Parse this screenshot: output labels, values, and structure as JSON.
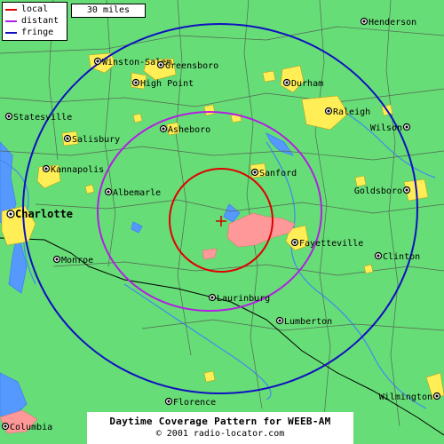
{
  "legend": {
    "items": [
      {
        "label": "local",
        "color": "#e00000"
      },
      {
        "label": "distant",
        "color": "#b020e0"
      },
      {
        "label": "fringe",
        "color": "#1010c0"
      }
    ]
  },
  "scale": {
    "label": "30 miles"
  },
  "title": "Daytime Coverage Pattern for WEEB-AM",
  "copyright": "© 2001 radio-locator.com",
  "cities": [
    {
      "name": "Henderson",
      "big": false
    },
    {
      "name": "Winston-Salem",
      "big": false
    },
    {
      "name": "Greensboro",
      "big": false
    },
    {
      "name": "High Point",
      "big": false
    },
    {
      "name": "Durham",
      "big": false
    },
    {
      "name": "Raleigh",
      "big": false
    },
    {
      "name": "Wilson",
      "big": false
    },
    {
      "name": "Statesville",
      "big": false
    },
    {
      "name": "Salisbury",
      "big": false
    },
    {
      "name": "Asheboro",
      "big": false
    },
    {
      "name": "Kannapolis",
      "big": false
    },
    {
      "name": "Sanford",
      "big": false
    },
    {
      "name": "Albemarle",
      "big": false
    },
    {
      "name": "Goldsboro",
      "big": false
    },
    {
      "name": "Charlotte",
      "big": true
    },
    {
      "name": "Fayetteville",
      "big": false
    },
    {
      "name": "Monroe",
      "big": false
    },
    {
      "name": "Clinton",
      "big": false
    },
    {
      "name": "Laurinburg",
      "big": false
    },
    {
      "name": "Lumberton",
      "big": false
    },
    {
      "name": "Florence",
      "big": false
    },
    {
      "name": "Wilmington",
      "big": false
    },
    {
      "name": "Columbia",
      "big": false
    }
  ],
  "colors": {
    "land": "#66dd77",
    "water": "#5599ff",
    "urban": "#ffee55",
    "military": "#ff9999",
    "county_border": "#556655",
    "state_border": "#000000"
  }
}
